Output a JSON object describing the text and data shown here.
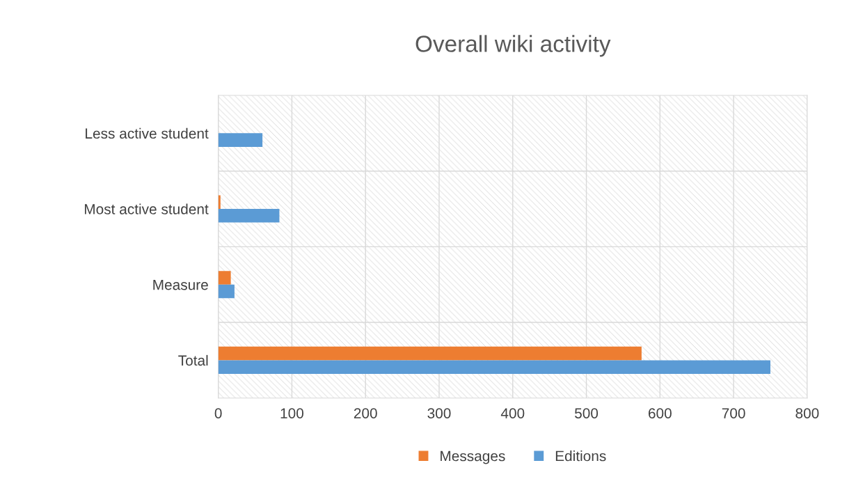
{
  "chart_data": {
    "type": "bar",
    "orientation": "horizontal",
    "title": "Overall wiki activity",
    "categories": [
      "Less active student",
      "Most active student",
      "Measure",
      "Total"
    ],
    "series": [
      {
        "name": "Messages",
        "color": "#ed7d31",
        "values": [
          0,
          3,
          17,
          575
        ]
      },
      {
        "name": "Editions",
        "color": "#5b9bd5",
        "values": [
          60,
          83,
          22,
          750
        ]
      }
    ],
    "xlim": [
      0,
      800
    ],
    "xticks": [
      0,
      100,
      200,
      300,
      400,
      500,
      600,
      700,
      800
    ],
    "grid": true,
    "legend": "bottom"
  }
}
